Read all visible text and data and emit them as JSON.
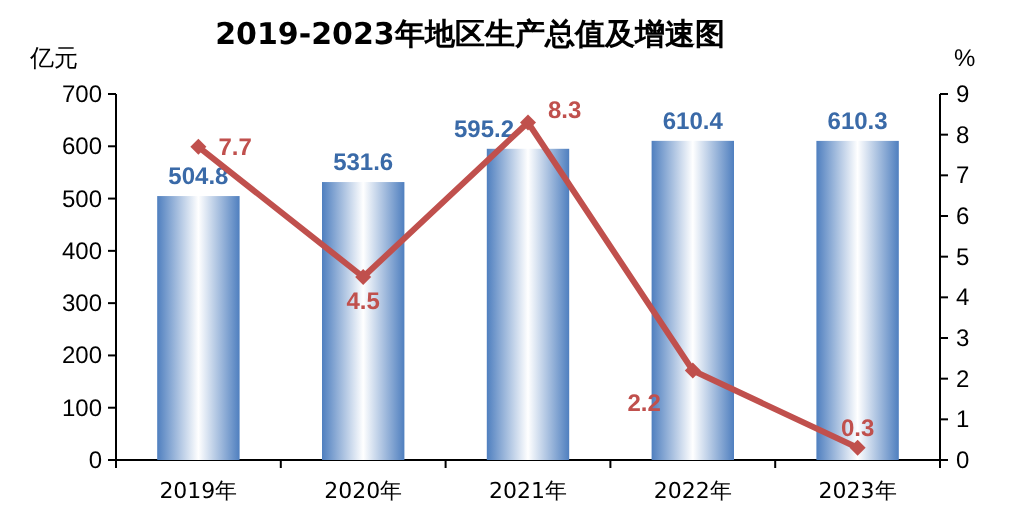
{
  "chart_data": {
    "type": "bar",
    "title": "2019-2023年地区生产总值及增速图",
    "ylabel": "亿元",
    "y2label": "%",
    "categories": [
      "2019年",
      "2020年",
      "2021年",
      "2022年",
      "2023年"
    ],
    "series": [
      {
        "color": "#4f7fbf",
        "values": [
          504.8,
          531.6,
          595.2,
          610.4,
          610.3
        ]
      },
      {
        "type": "line",
        "axis": "y2",
        "color": "#c0504d",
        "marker": "diamond",
        "values": [
          7.7,
          4.5,
          8.3,
          2.2,
          0.3
        ]
      }
    ],
    "ylim": [
      0,
      700
    ],
    "yticks": [
      0,
      100,
      200,
      300,
      400,
      500,
      600,
      700
    ],
    "y2lim": [
      0,
      9
    ],
    "y2ticks": [
      0,
      1,
      2,
      3,
      4,
      5,
      6,
      7,
      8,
      9
    ],
    "data_labels": true
  }
}
